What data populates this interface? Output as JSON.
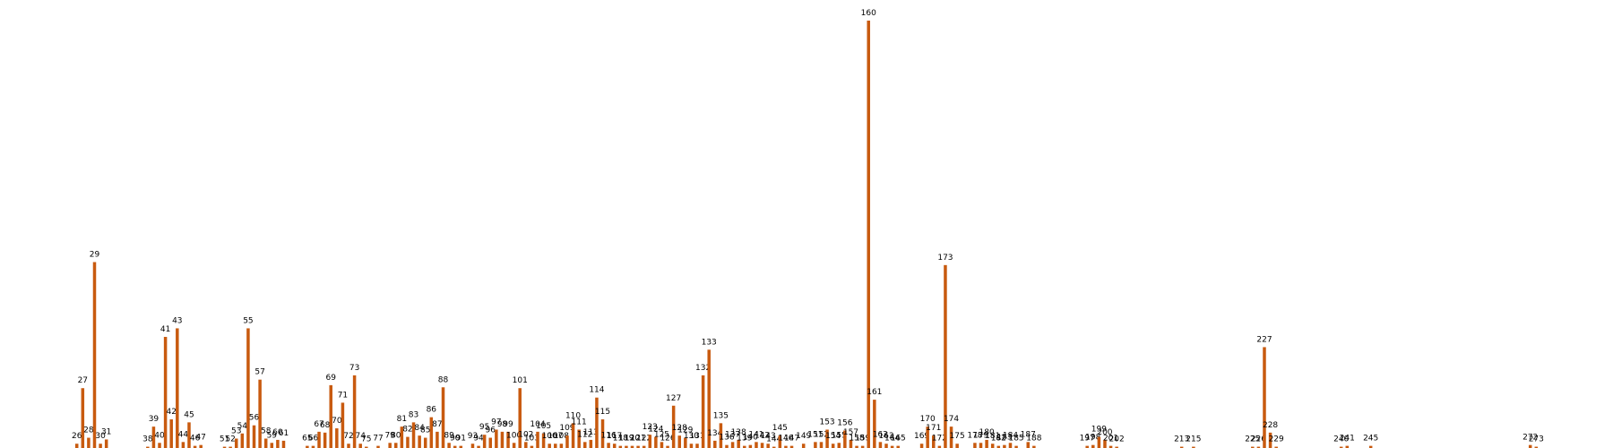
{
  "chart_data": {
    "type": "bar",
    "color": "#c85a0f",
    "xlim": [
      13,
      286
    ],
    "ylim": [
      0,
      100
    ],
    "x": [
      26,
      27,
      28,
      29,
      30,
      31,
      38,
      39,
      40,
      41,
      42,
      43,
      44,
      45,
      46,
      47,
      51,
      52,
      53,
      54,
      55,
      56,
      57,
      58,
      59,
      60,
      61,
      65,
      66,
      67,
      68,
      69,
      70,
      71,
      72,
      73,
      74,
      75,
      77,
      79,
      80,
      81,
      82,
      83,
      84,
      85,
      86,
      87,
      88,
      89,
      90,
      91,
      93,
      94,
      95,
      96,
      97,
      98,
      99,
      100,
      101,
      102,
      103,
      104,
      105,
      106,
      107,
      108,
      109,
      110,
      111,
      112,
      113,
      114,
      115,
      116,
      117,
      118,
      119,
      120,
      121,
      122,
      123,
      124,
      125,
      126,
      127,
      128,
      129,
      130,
      131,
      132,
      133,
      134,
      135,
      136,
      137,
      138,
      139,
      140,
      141,
      142,
      143,
      144,
      145,
      146,
      147,
      149,
      151,
      152,
      153,
      154,
      155,
      156,
      157,
      158,
      159,
      160,
      161,
      162,
      163,
      164,
      165,
      169,
      170,
      171,
      172,
      173,
      174,
      175,
      178,
      179,
      180,
      181,
      182,
      183,
      184,
      185,
      187,
      188,
      197,
      198,
      199,
      200,
      201,
      202,
      213,
      215,
      225,
      226,
      227,
      228,
      229,
      240,
      241,
      245,
      272,
      273
    ],
    "values": [
      1,
      14,
      2.4,
      43.5,
      1,
      2,
      0.3,
      5,
      1.2,
      26,
      6.7,
      28,
      1.4,
      6,
      0.5,
      0.7,
      0.3,
      0.3,
      2.2,
      3.4,
      28,
      5.3,
      16,
      2.2,
      1.2,
      1.9,
      1.7,
      0.5,
      0.5,
      3.8,
      3.6,
      14.7,
      4.6,
      10.6,
      1,
      17,
      1,
      0.3,
      0.5,
      1.2,
      1.2,
      5,
      2.6,
      6,
      2.9,
      2.4,
      7.2,
      3.8,
      14.2,
      1.2,
      0.5,
      0.5,
      1,
      0.5,
      3.1,
      2.4,
      4.3,
      3.8,
      3.8,
      1.2,
      14,
      1.4,
      0.5,
      3.8,
      3.4,
      1,
      1,
      1,
      2.9,
      5.8,
      4.3,
      1.4,
      1.9,
      11.8,
      6.7,
      1.2,
      1,
      0.5,
      0.5,
      0.5,
      0.5,
      0.5,
      3.1,
      2.6,
      1.4,
      0.5,
      9.9,
      2.9,
      2.4,
      1,
      1,
      17,
      23,
      1.7,
      5.8,
      0.7,
      1.4,
      1.9,
      0.5,
      0.7,
      1.4,
      1.2,
      1,
      0.3,
      2.9,
      0.5,
      0.5,
      1,
      1.4,
      1.4,
      4.3,
      1,
      1.2,
      4.1,
      1.9,
      0.5,
      0.5,
      100,
      11.3,
      1.4,
      1,
      0.5,
      0.5,
      1,
      5,
      2.9,
      0.5,
      42.8,
      5,
      1,
      1.2,
      1.2,
      1.9,
      1,
      0.5,
      0.7,
      1.2,
      0.5,
      1.4,
      0.5,
      0.5,
      0.7,
      2.6,
      1.9,
      0.5,
      0.3,
      0.3,
      0.3,
      0.3,
      0.3,
      23.6,
      3.6,
      0.3,
      0.3,
      0.5,
      0.5,
      0.7,
      0.3
    ]
  }
}
